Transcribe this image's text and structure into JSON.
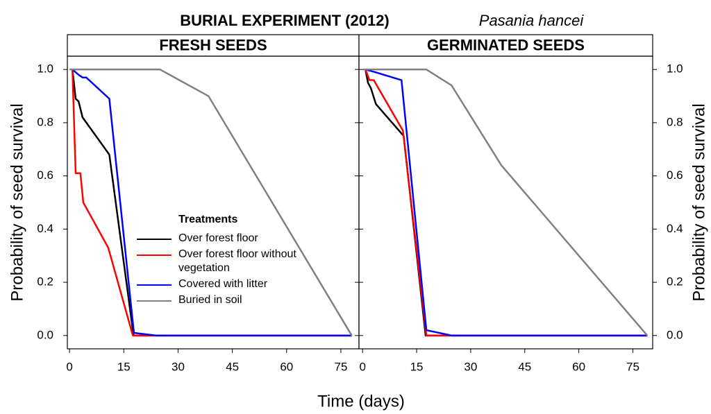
{
  "title": "BURIAL EXPERIMENT (2012)",
  "subtitle": "Pasania hancei",
  "x_label": "Time (days)",
  "y_label": "Probability of seed survival",
  "legend_title": "Treatments",
  "chart_data": [
    {
      "type": "line",
      "title": "FRESH SEEDS",
      "xlim": [
        -0.6,
        80
      ],
      "ylim": [
        -0.05,
        1.05
      ],
      "xticks": [
        0,
        15,
        30,
        45,
        60,
        75
      ],
      "yticks": [
        {
          "value": 0,
          "label": "0.0"
        },
        0.2,
        0.4,
        0.6,
        0.8,
        {
          "value": 1,
          "label": "1.0"
        }
      ],
      "series": [
        {
          "name": "Over forest floor",
          "color": "#000000",
          "x": [
            0.8,
            1.7,
            2.5,
            3.6,
            11,
            17.7,
            78
          ],
          "values": [
            1.0,
            0.89,
            0.88,
            0.82,
            0.68,
            0,
            0
          ]
        },
        {
          "name": "Over forest floor without vegetation",
          "color": "#ff0000",
          "x": [
            0.8,
            1.7,
            3,
            3.8,
            10.7,
            17.5,
            78
          ],
          "values": [
            1.0,
            0.61,
            0.61,
            0.5,
            0.33,
            0,
            0
          ]
        },
        {
          "name": "Covered with litter",
          "color": "#0000ff",
          "x": [
            0.8,
            2.5,
            3.6,
            4.6,
            11,
            17.8,
            24,
            78
          ],
          "values": [
            1.0,
            0.98,
            0.97,
            0.97,
            0.89,
            0.01,
            0,
            0
          ]
        },
        {
          "name": "Buried in soil",
          "color": "#808080",
          "x": [
            0,
            25,
            38.4,
            78
          ],
          "values": [
            1.0,
            1.0,
            0.9,
            0
          ]
        }
      ]
    },
    {
      "type": "line",
      "title": "GERMINATED SEEDS",
      "xlim": [
        -1,
        80.5
      ],
      "ylim": [
        -0.05,
        1.05
      ],
      "xticks": [
        0,
        15,
        30,
        45,
        60,
        75
      ],
      "yticks": [
        {
          "value": 0,
          "label": "0.0"
        },
        0.2,
        0.4,
        0.6,
        0.8,
        {
          "value": 1,
          "label": "1.0"
        }
      ],
      "series": [
        {
          "color": "#000000",
          "x": [
            0.8,
            1.5,
            2.3,
            3.7,
            11.4,
            17.5,
            79
          ],
          "values": [
            1.0,
            0.95,
            0.93,
            0.87,
            0.75,
            0,
            0
          ]
        },
        {
          "color": "#ff0000",
          "x": [
            0.8,
            1.9,
            3.1,
            11.2,
            17.7,
            79
          ],
          "values": [
            1.0,
            0.96,
            0.96,
            0.77,
            0,
            0
          ]
        },
        {
          "color": "#0000ff",
          "x": [
            0.8,
            3.5,
            10.8,
            17.7,
            24.7,
            79
          ],
          "values": [
            1.0,
            0.99,
            0.96,
            0.02,
            0,
            0
          ]
        },
        {
          "color": "#808080",
          "x": [
            0,
            17.7,
            24.7,
            38.5,
            79
          ],
          "values": [
            1.0,
            1.0,
            0.94,
            0.64,
            0
          ]
        }
      ]
    }
  ]
}
